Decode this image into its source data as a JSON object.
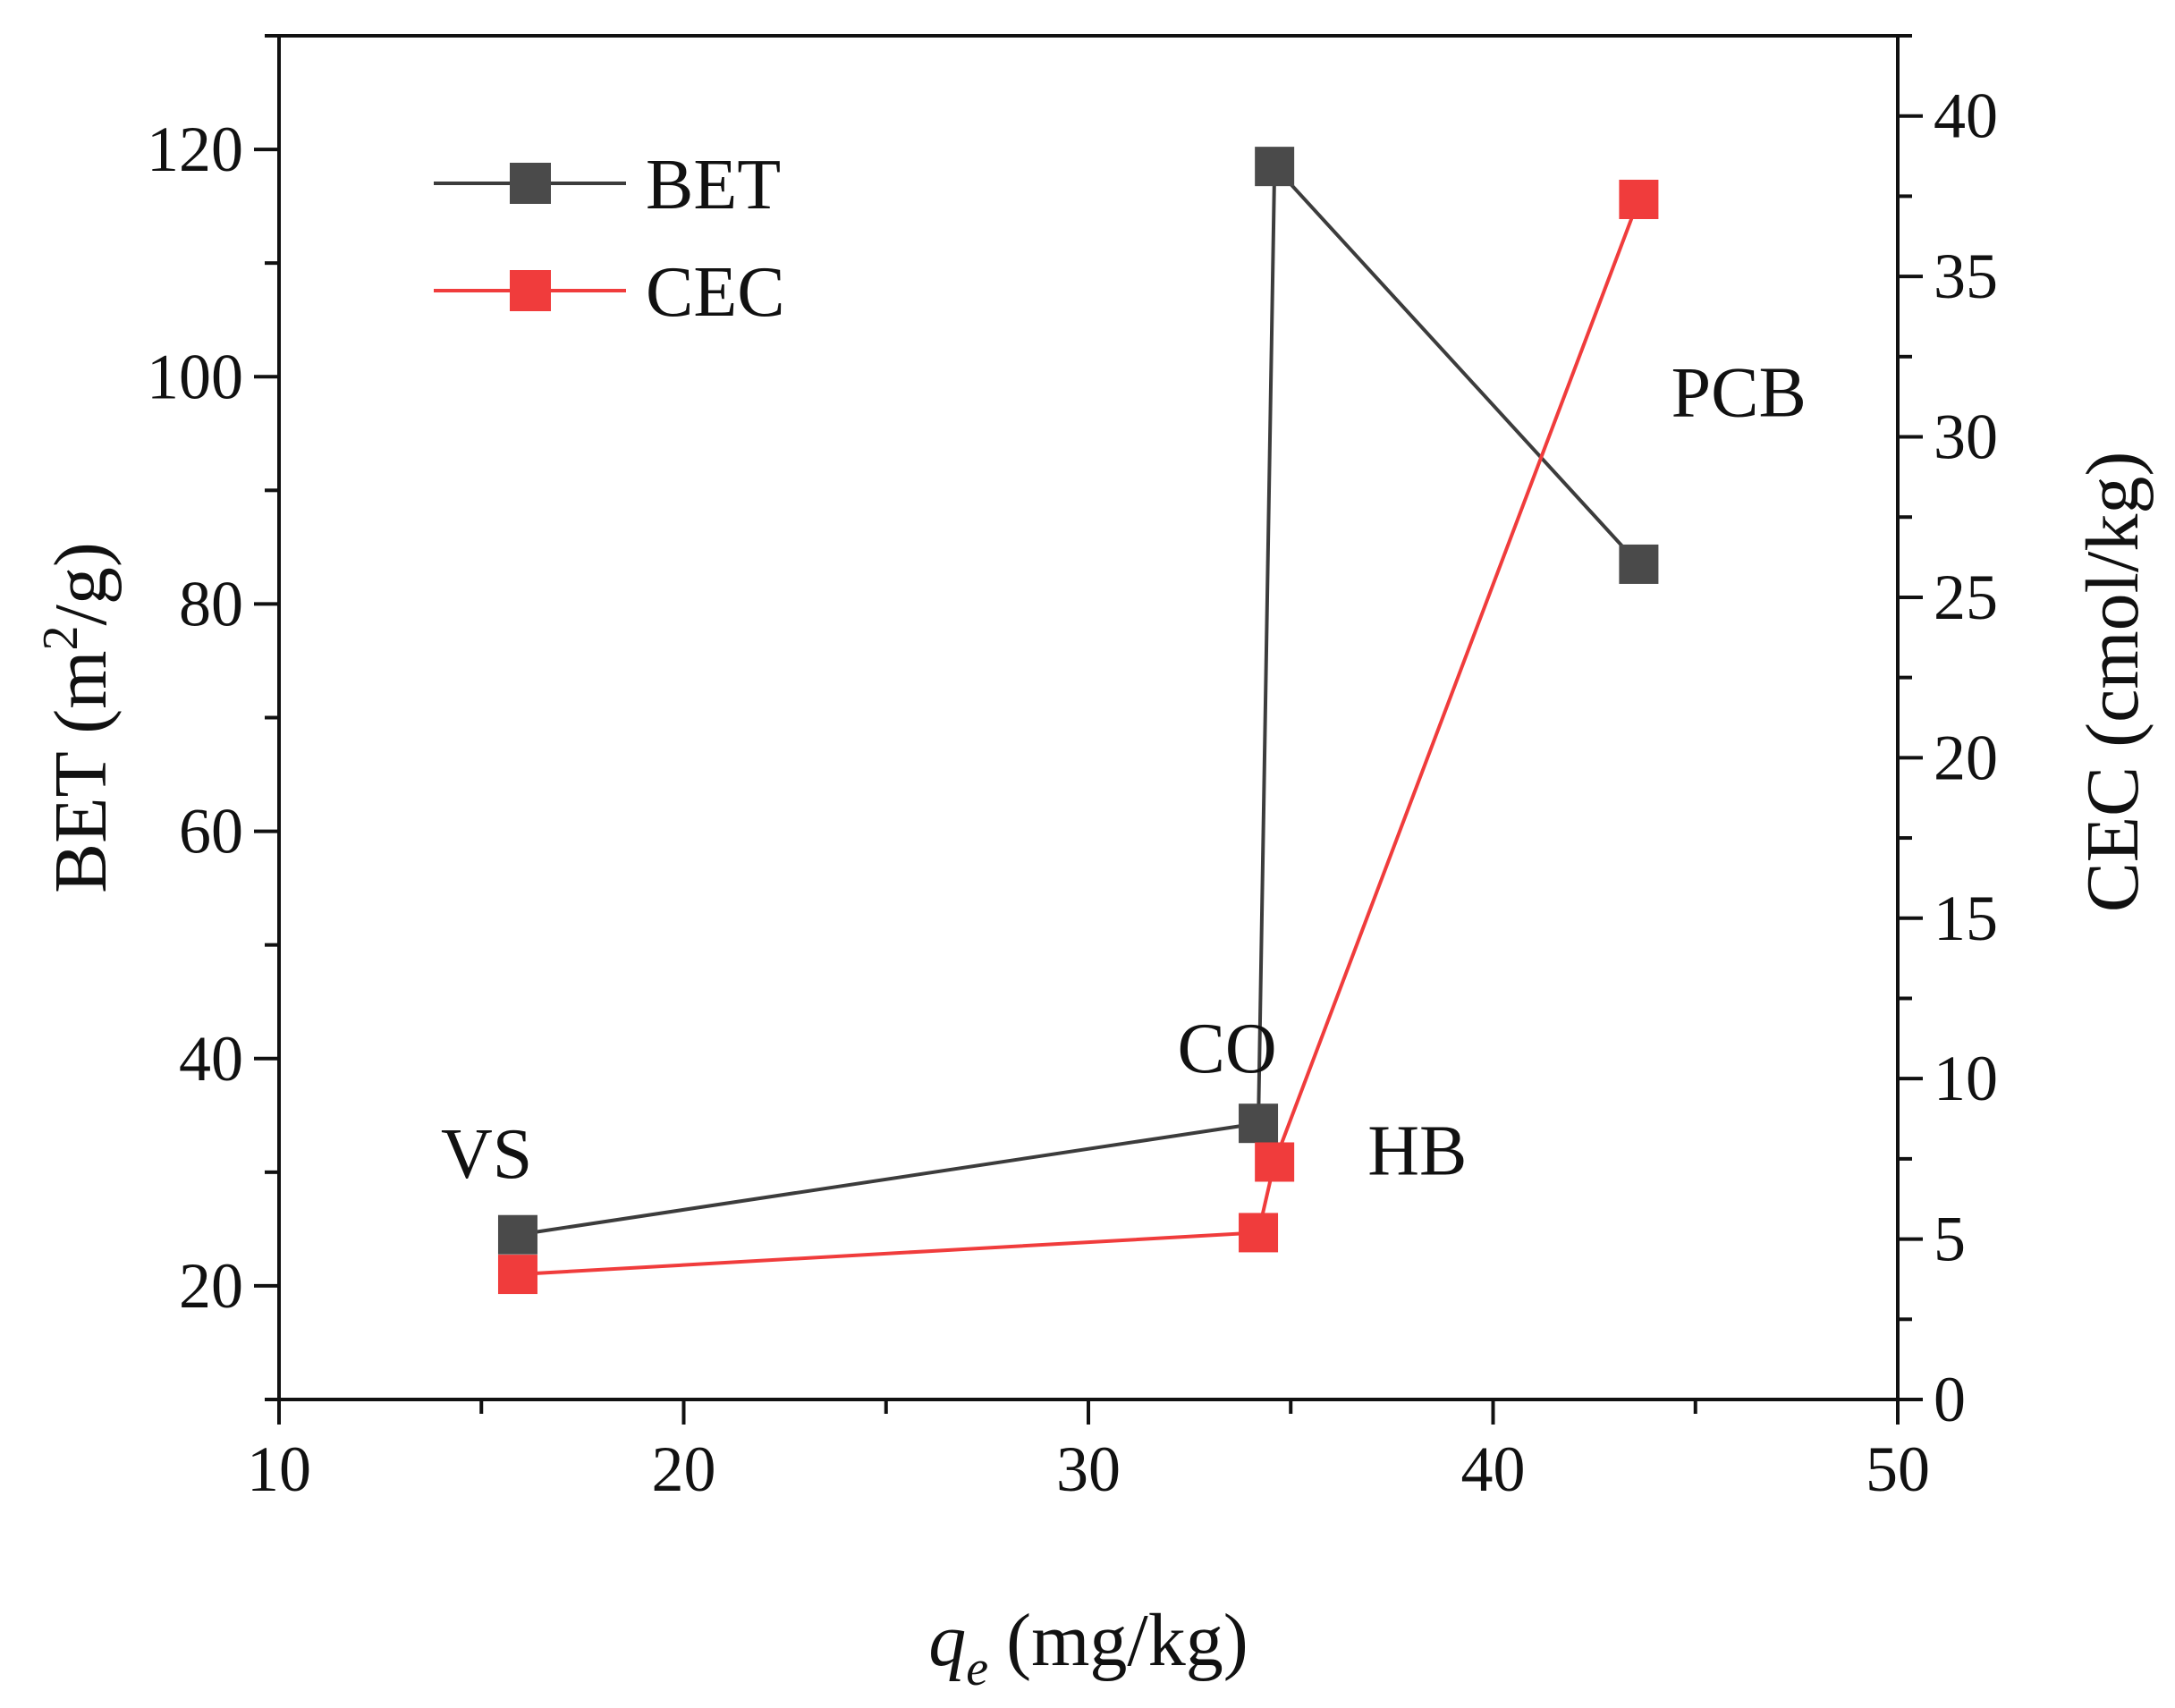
{
  "chart_data": {
    "type": "line",
    "title": "",
    "xlabel": {
      "symbol": "q",
      "subscript": "e",
      "unit": "(mg/kg)"
    },
    "ylabel_left": {
      "base": "BET (m",
      "superscript": "2",
      "tail": "/g)"
    },
    "ylabel_right": "CEC (cmol/kg)",
    "xlim": [
      10,
      50
    ],
    "ylim_left": [
      10,
      130
    ],
    "ylim_right": [
      0,
      42.5
    ],
    "xticks": [
      10,
      20,
      30,
      40,
      50
    ],
    "yticks_left": [
      20,
      40,
      60,
      80,
      100,
      120
    ],
    "yticks_right": [
      0,
      5,
      10,
      15,
      20,
      25,
      30,
      35,
      40
    ],
    "grid": false,
    "legend_position": "top-left",
    "series": [
      {
        "name": "BET",
        "axis": "left",
        "color": "#4a4a4a",
        "line_color": "#3c3c3c",
        "marker": "square",
        "points": [
          {
            "x": 15.9,
            "y": 24.5
          },
          {
            "x": 34.2,
            "y": 34.3
          },
          {
            "x": 34.6,
            "y": 118.5
          },
          {
            "x": 43.6,
            "y": 83.5
          }
        ]
      },
      {
        "name": "CEC",
        "axis": "right",
        "color": "#f03c3c",
        "line_color": "#f03c3c",
        "marker": "square",
        "points": [
          {
            "x": 15.9,
            "y": 3.9
          },
          {
            "x": 34.2,
            "y": 5.2
          },
          {
            "x": 34.6,
            "y": 7.4
          },
          {
            "x": 43.6,
            "y": 37.4
          }
        ]
      }
    ],
    "annotations": [
      {
        "text": "VS",
        "x": 14.0,
        "y": 29.5
      },
      {
        "text": "CO",
        "x": 32.2,
        "y": 38.8
      },
      {
        "text": "HB",
        "x": 36.9,
        "y": 29.8
      },
      {
        "text": "PCB",
        "x": 44.4,
        "y": 96.5
      }
    ]
  }
}
